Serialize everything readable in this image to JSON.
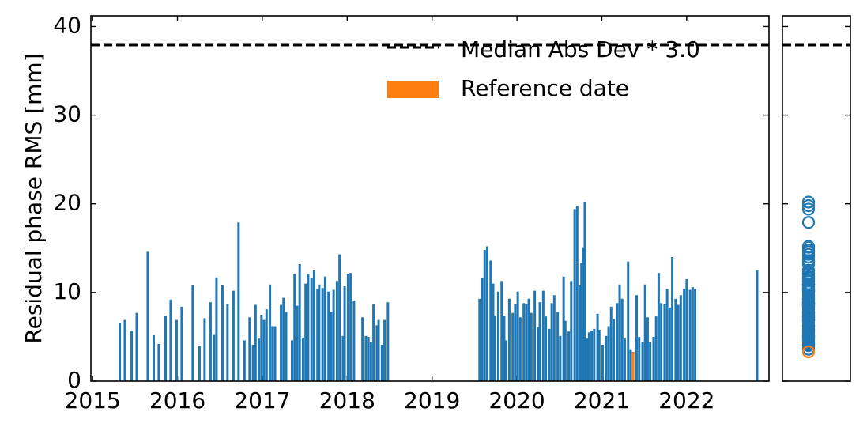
{
  "chart_data": {
    "type": "bar",
    "ylabel": "Residual phase RMS [mm]",
    "color": "#1f77b4",
    "xlim": [
      2014.98,
      2022.97
    ],
    "xticks": [
      2015,
      2016,
      2017,
      2018,
      2019,
      2020,
      2021,
      2022
    ],
    "ylim": [
      0,
      41.2
    ],
    "yticks": [
      0,
      10,
      20,
      30,
      40
    ],
    "legend": "upper right",
    "threshold": {
      "name": "Median Abs Dev * 3.0",
      "value": 37.9,
      "color": "#000000"
    },
    "reference": {
      "name": "Reference date",
      "x": 2021.37,
      "value": 3.3,
      "color": "#ff7f0e"
    },
    "x": [
      2015.32,
      2015.38,
      2015.46,
      2015.52,
      2015.65,
      2015.72,
      2015.78,
      2015.86,
      2015.92,
      2015.99,
      2016.05,
      2016.18,
      2016.26,
      2016.32,
      2016.39,
      2016.43,
      2016.46,
      2016.53,
      2016.59,
      2016.66,
      2016.72,
      2016.79,
      2016.85,
      2016.89,
      2016.92,
      2016.96,
      2016.99,
      2017.02,
      2017.05,
      2017.09,
      2017.12,
      2017.15,
      2017.22,
      2017.25,
      2017.28,
      2017.35,
      2017.38,
      2017.41,
      2017.44,
      2017.48,
      2017.51,
      2017.54,
      2017.58,
      2017.61,
      2017.65,
      2017.67,
      2017.71,
      2017.74,
      2017.78,
      2017.81,
      2017.84,
      2017.88,
      2017.91,
      2017.95,
      2017.97,
      2018.01,
      2018.04,
      2018.08,
      2018.18,
      2018.22,
      2018.25,
      2018.28,
      2018.31,
      2018.35,
      2018.37,
      2018.41,
      2018.44,
      2018.48,
      2019.56,
      2019.59,
      2019.62,
      2019.65,
      2019.69,
      2019.72,
      2019.74,
      2019.78,
      2019.82,
      2019.85,
      2019.87,
      2019.91,
      2019.95,
      2019.98,
      2020.01,
      2020.04,
      2020.08,
      2020.11,
      2020.14,
      2020.17,
      2020.21,
      2020.25,
      2020.27,
      2020.31,
      2020.34,
      2020.38,
      2020.41,
      2020.44,
      2020.48,
      2020.51,
      2020.55,
      2020.57,
      2020.61,
      2020.64,
      2020.68,
      2020.71,
      2020.74,
      2020.76,
      2020.78,
      2020.8,
      2020.83,
      2020.85,
      2020.88,
      2020.91,
      2020.95,
      2020.97,
      2021.01,
      2021.05,
      2021.08,
      2021.11,
      2021.14,
      2021.18,
      2021.21,
      2021.24,
      2021.27,
      2021.31,
      2021.34,
      2021.41,
      2021.44,
      2021.48,
      2021.51,
      2021.54,
      2021.57,
      2021.61,
      2021.64,
      2021.67,
      2021.7,
      2021.74,
      2021.77,
      2021.8,
      2021.83,
      2021.87,
      2021.9,
      2021.93,
      2021.97,
      2022.0,
      2022.04,
      2022.07,
      2022.1,
      2022.83
    ],
    "values": [
      6.6,
      6.9,
      5.7,
      7.7,
      14.6,
      5.2,
      4.2,
      7.4,
      9.2,
      6.9,
      8.4,
      10.8,
      4.0,
      7.1,
      8.9,
      5.3,
      11.7,
      10.8,
      8.7,
      10.2,
      17.9,
      4.6,
      7.2,
      4.1,
      8.6,
      4.8,
      7.5,
      6.9,
      8.1,
      10.9,
      6.2,
      6.2,
      8.6,
      9.4,
      7.8,
      4.6,
      12.1,
      8.5,
      13.2,
      4.9,
      11.0,
      12.1,
      11.6,
      12.5,
      10.4,
      10.9,
      10.5,
      11.8,
      10.1,
      7.8,
      10.3,
      11.3,
      14.3,
      5.1,
      10.7,
      12.1,
      12.2,
      9.1,
      7.2,
      5.1,
      5.0,
      4.4,
      8.7,
      6.3,
      6.9,
      4.1,
      6.9,
      8.9,
      9.3,
      11.6,
      14.8,
      15.2,
      13.6,
      11.0,
      7.4,
      10.1,
      11.3,
      7.4,
      4.6,
      9.3,
      7.7,
      8.7,
      10.1,
      7.2,
      8.8,
      8.7,
      9.3,
      7.7,
      10.2,
      6.1,
      8.9,
      10.2,
      7.3,
      5.9,
      8.8,
      9.7,
      7.8,
      5.1,
      11.8,
      6.8,
      5.6,
      11.3,
      19.4,
      19.8,
      10.8,
      13.3,
      15.1,
      20.2,
      4.8,
      5.5,
      5.7,
      5.9,
      7.6,
      5.8,
      4.1,
      5.1,
      6.2,
      8.4,
      7.0,
      8.8,
      10.9,
      9.3,
      4.8,
      13.5,
      3.6,
      9.7,
      5.0,
      4.4,
      10.9,
      7.2,
      4.4,
      5.0,
      7.3,
      12.2,
      8.8,
      8.7,
      10.4,
      8.3,
      14.0,
      9.3,
      8.6,
      9.7,
      10.4,
      11.5,
      10.3,
      10.6,
      10.4,
      12.5
    ]
  }
}
